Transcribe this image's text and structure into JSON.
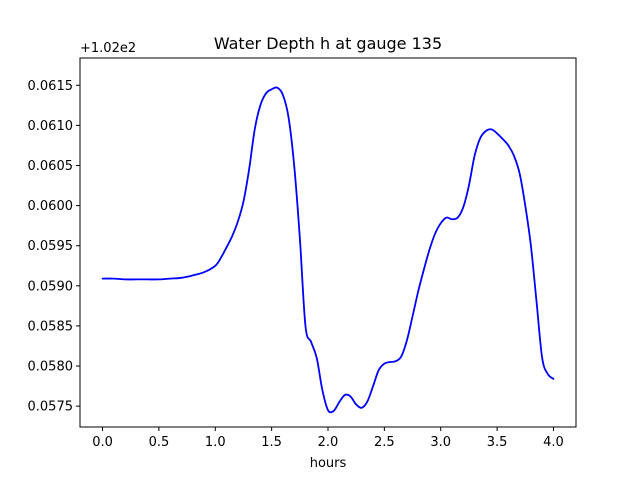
{
  "chart_data": {
    "type": "line",
    "title": "Water Depth h at gauge 135",
    "xlabel": "hours",
    "ylabel": "",
    "offset_label": "+1.02e2",
    "xlim": [
      -0.2,
      4.2
    ],
    "ylim": [
      0.05724,
      0.06184
    ],
    "x_ticks": [
      0.0,
      0.5,
      1.0,
      1.5,
      2.0,
      2.5,
      3.0,
      3.5,
      4.0
    ],
    "x_tick_labels": [
      "0.0",
      "0.5",
      "1.0",
      "1.5",
      "2.0",
      "2.5",
      "3.0",
      "3.5",
      "4.0"
    ],
    "y_ticks": [
      0.0575,
      0.058,
      0.0585,
      0.059,
      0.0595,
      0.06,
      0.0605,
      0.061,
      0.0615
    ],
    "y_tick_labels": [
      "0.0575",
      "0.0580",
      "0.0585",
      "0.0590",
      "0.0595",
      "0.0600",
      "0.0605",
      "0.0610",
      "0.0615"
    ],
    "grid": false,
    "series": [
      {
        "color": "#0000ff",
        "x": [
          0.0,
          0.1,
          0.2,
          0.3,
          0.4,
          0.5,
          0.6,
          0.7,
          0.8,
          0.9,
          1.0,
          1.05,
          1.1,
          1.15,
          1.2,
          1.25,
          1.3,
          1.35,
          1.4,
          1.45,
          1.5,
          1.55,
          1.6,
          1.65,
          1.7,
          1.75,
          1.8,
          1.85,
          1.9,
          1.95,
          2.0,
          2.05,
          2.1,
          2.15,
          2.2,
          2.25,
          2.3,
          2.35,
          2.4,
          2.45,
          2.5,
          2.55,
          2.6,
          2.65,
          2.7,
          2.75,
          2.8,
          2.85,
          2.9,
          2.95,
          3.0,
          3.05,
          3.1,
          3.15,
          3.2,
          3.25,
          3.3,
          3.35,
          3.4,
          3.45,
          3.5,
          3.55,
          3.6,
          3.65,
          3.7,
          3.75,
          3.8,
          3.85,
          3.9,
          3.95,
          4.0
        ],
        "y": [
          0.05909,
          0.05909,
          0.05908,
          0.05908,
          0.05908,
          0.05908,
          0.05909,
          0.0591,
          0.05913,
          0.05917,
          0.05925,
          0.05935,
          0.05948,
          0.05962,
          0.0598,
          0.06005,
          0.06045,
          0.06095,
          0.06125,
          0.0614,
          0.06145,
          0.06147,
          0.06138,
          0.0611,
          0.0605,
          0.0596,
          0.0585,
          0.0583,
          0.0581,
          0.0577,
          0.05745,
          0.05744,
          0.05755,
          0.05764,
          0.05762,
          0.05752,
          0.05748,
          0.05756,
          0.05775,
          0.05795,
          0.05803,
          0.05805,
          0.05806,
          0.05812,
          0.05832,
          0.05862,
          0.05893,
          0.0592,
          0.05945,
          0.05965,
          0.05978,
          0.05985,
          0.05983,
          0.05985,
          0.05998,
          0.06025,
          0.06062,
          0.06084,
          0.06093,
          0.06095,
          0.0609,
          0.06083,
          0.06075,
          0.06062,
          0.0604,
          0.06,
          0.0595,
          0.0588,
          0.0581,
          0.0579,
          0.05784
        ]
      }
    ]
  }
}
